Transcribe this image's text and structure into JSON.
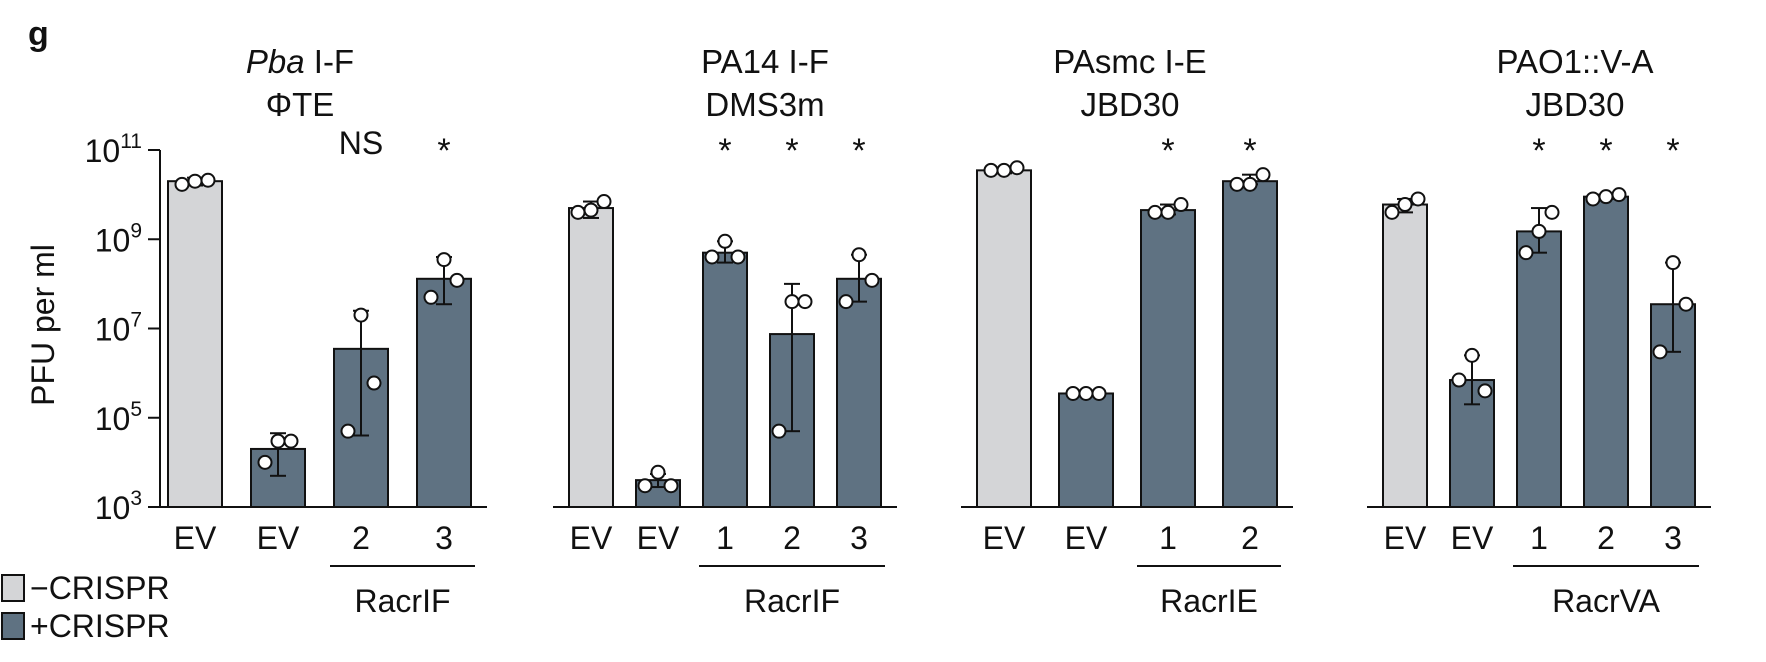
{
  "panel_label": "g",
  "y_axis": {
    "label": "PFU per ml",
    "scale": "log",
    "ylim": [
      1000,
      100000000000
    ],
    "ticks": [
      {
        "value": 1000,
        "base": "10",
        "exp": "3"
      },
      {
        "value": 100000,
        "base": "10",
        "exp": "5"
      },
      {
        "value": 10000000,
        "base": "10",
        "exp": "7"
      },
      {
        "value": 1000000000,
        "base": "10",
        "exp": "9"
      },
      {
        "value": 100000000000,
        "base": "10",
        "exp": "11"
      }
    ]
  },
  "colors": {
    "minus_crispr": "#d4d5d7",
    "plus_crispr": "#5f7282",
    "outline": "#111111"
  },
  "legend": {
    "placement": "bottom-left",
    "items": [
      {
        "label": "−CRISPR",
        "color": "#d4d5d7"
      },
      {
        "label": "+CRISPR",
        "color": "#5f7282"
      }
    ]
  },
  "chart_data": [
    {
      "type": "bar",
      "title_italic": "Pba",
      "title_rest": " I-F",
      "subtitle": "ΦTE",
      "categories": [
        "EV",
        "EV",
        "2",
        "3"
      ],
      "conditions": [
        "−CRISPR",
        "+CRISPR",
        "+CRISPR",
        "+CRISPR"
      ],
      "group_label": "RacrIF",
      "group_span": [
        2,
        3
      ],
      "values": [
        20000000000,
        20000,
        3500000,
        130000000
      ],
      "err_low": [
        16000000000,
        5000,
        40000,
        35000000
      ],
      "err_high": [
        24000000000,
        45000,
        25000000,
        400000000
      ],
      "points": [
        [
          17000000000,
          21000000000,
          20000000000
        ],
        [
          10000,
          30000,
          30000
        ],
        [
          50000,
          600000,
          20000000
        ],
        [
          50000000,
          120000000,
          350000000
        ]
      ],
      "significance": [
        "",
        "",
        "NS",
        "*"
      ]
    },
    {
      "type": "bar",
      "title_italic": "",
      "title_rest": "PA14 I-F",
      "subtitle": "DMS3m",
      "categories": [
        "EV",
        "EV",
        "1",
        "2",
        "3"
      ],
      "conditions": [
        "−CRISPR",
        "+CRISPR",
        "+CRISPR",
        "+CRISPR",
        "+CRISPR"
      ],
      "group_label": "RacrIF",
      "group_span": [
        2,
        4
      ],
      "values": [
        5000000000,
        4000,
        500000000,
        7500000,
        130000000
      ],
      "err_low": [
        3000000000,
        2800,
        300000000,
        50000,
        40000000
      ],
      "err_high": [
        7000000000,
        5500,
        900000000,
        100000000,
        450000000
      ],
      "points": [
        [
          4000000000,
          7000000000,
          4500000000
        ],
        [
          3000,
          3000,
          6000
        ],
        [
          400000000,
          400000000,
          900000000
        ],
        [
          50000,
          40000000,
          40000000
        ],
        [
          40000000,
          120000000,
          450000000
        ]
      ],
      "significance": [
        "",
        "",
        "*",
        "*",
        "*"
      ]
    },
    {
      "type": "bar",
      "title_italic": "",
      "title_rest": "PAsmc I-E",
      "subtitle": "JBD30",
      "categories": [
        "EV",
        "EV",
        "1",
        "2"
      ],
      "conditions": [
        "−CRISPR",
        "+CRISPR",
        "+CRISPR",
        "+CRISPR"
      ],
      "group_label": "RacrIE",
      "group_span": [
        2,
        3
      ],
      "values": [
        35000000000,
        350000,
        4500000000,
        20000000000
      ],
      "err_low": [
        30000000000,
        340000,
        3600000000,
        17000000000
      ],
      "err_high": [
        40000000000,
        360000,
        6000000000,
        28000000000
      ],
      "points": [
        [
          35000000000,
          40000000000,
          35000000000
        ],
        [
          350000,
          350000,
          350000
        ],
        [
          4000000000,
          6000000000,
          4000000000
        ],
        [
          17000000000,
          28000000000,
          17000000000
        ]
      ],
      "significance": [
        "",
        "",
        "*",
        "*"
      ]
    },
    {
      "type": "bar",
      "title_italic": "",
      "title_rest": "PAO1::V-A",
      "subtitle": "JBD30",
      "categories": [
        "EV",
        "EV",
        "1",
        "2",
        "3"
      ],
      "conditions": [
        "−CRISPR",
        "+CRISPR",
        "+CRISPR",
        "+CRISPR",
        "+CRISPR"
      ],
      "group_label": "RacrVA",
      "group_span": [
        2,
        4
      ],
      "values": [
        6000000000,
        700000,
        1500000000,
        9000000000,
        35000000
      ],
      "err_low": [
        4000000000,
        200000,
        500000000,
        8000000000,
        3000000
      ],
      "err_high": [
        8000000000,
        2500000,
        5000000000,
        10000000000,
        300000000
      ],
      "points": [
        [
          4000000000,
          8000000000,
          6000000000
        ],
        [
          700000,
          400000,
          2500000
        ],
        [
          500000000,
          4000000000,
          1500000000
        ],
        [
          8000000000,
          10000000000,
          9000000000
        ],
        [
          3000000,
          35000000,
          300000000
        ]
      ],
      "significance": [
        "",
        "",
        "*",
        "*",
        "*"
      ]
    }
  ]
}
